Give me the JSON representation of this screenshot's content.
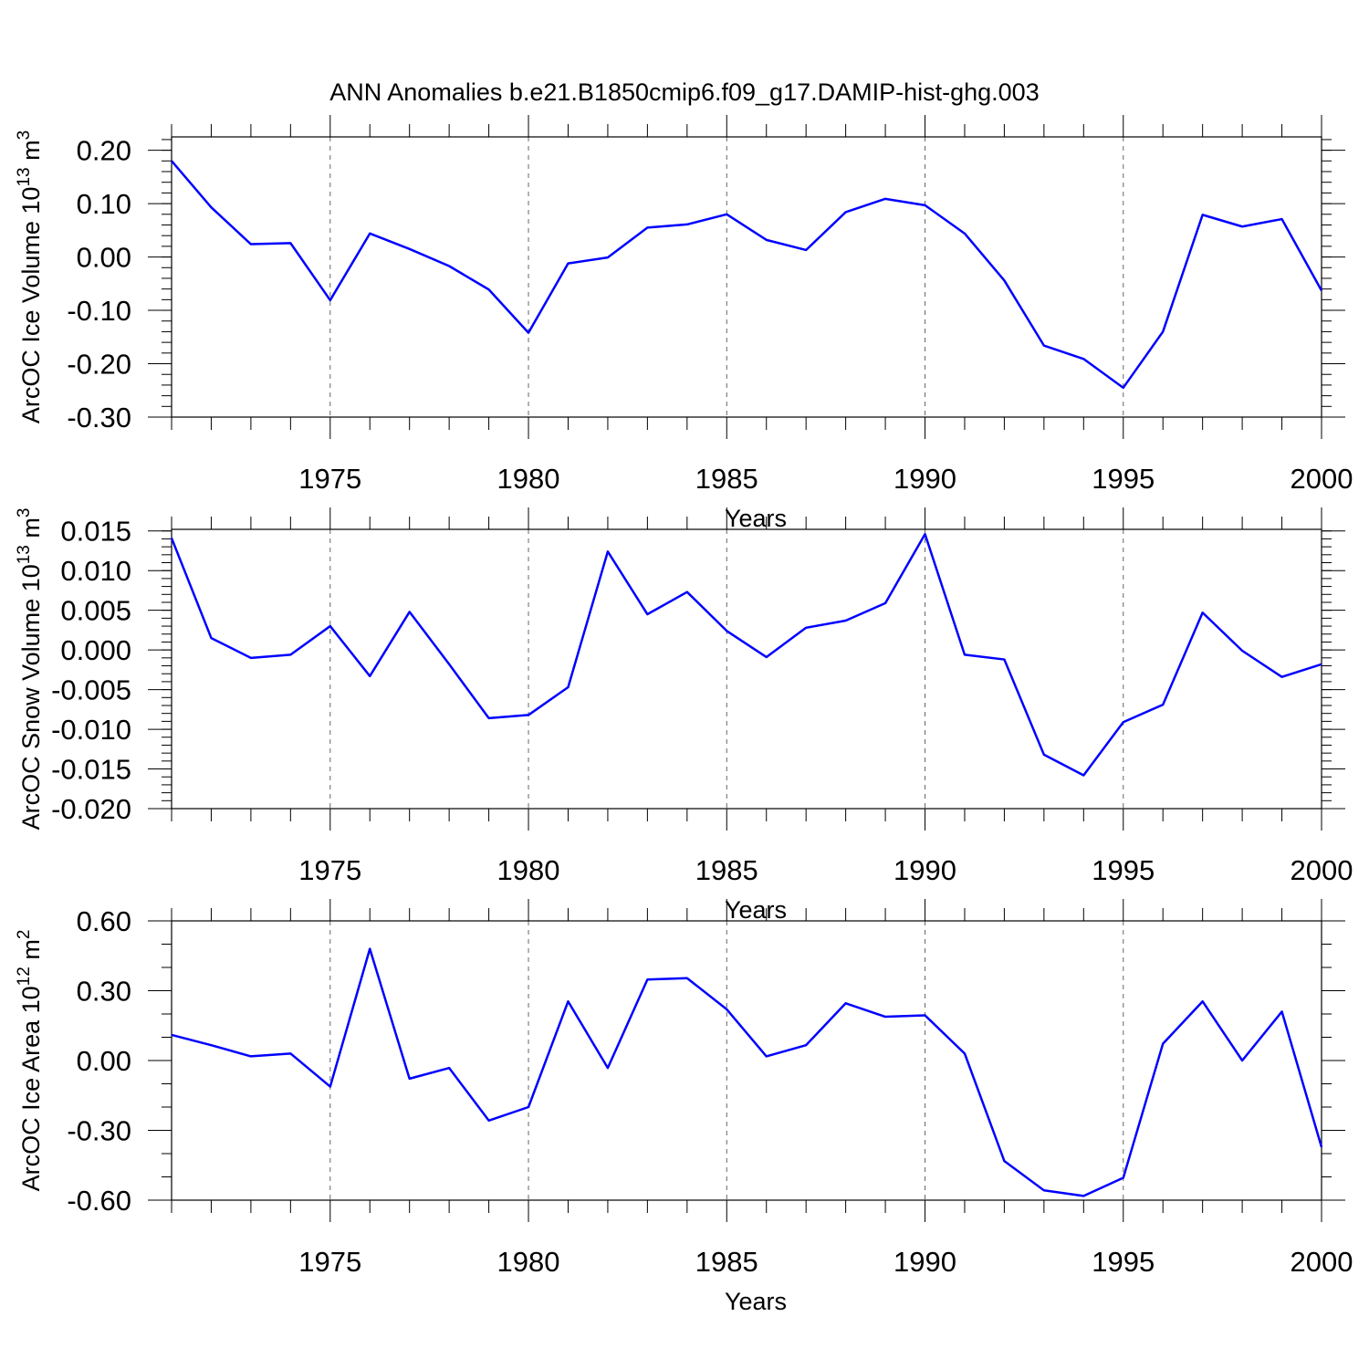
{
  "figure": {
    "title": "ANN Anomalies b.e21.B1850cmip6.f09_g17.DAMIP-hist-ghg.003"
  },
  "colors": {
    "line": "#0000ff",
    "axis": "#000000",
    "grid": "#666666"
  },
  "chart_data": [
    {
      "type": "line",
      "ylabel": "ArcOC Ice Volume 10",
      "ylabel_exp": "13",
      "ylabel_unit": " m",
      "ylabel_unit_exp": "3",
      "xlabel": "Years",
      "xlim": [
        1971,
        2000
      ],
      "ylim": [
        -0.3,
        0.225
      ],
      "yticks": [
        0.2,
        0.1,
        0.0,
        -0.1,
        -0.2,
        -0.3
      ],
      "ytick_labels": [
        "0.20",
        "0.10",
        "0.00",
        "-0.10",
        "-0.20",
        "-0.30"
      ],
      "yminor_step": 0.02,
      "xticks": [
        1975,
        1980,
        1985,
        1990,
        1995,
        2000
      ],
      "xtick_labels": [
        "1975",
        "1980",
        "1985",
        "1990",
        "1995",
        "2000"
      ],
      "grid_x": true,
      "x": [
        1971,
        1972,
        1973,
        1974,
        1975,
        1976,
        1977,
        1978,
        1979,
        1980,
        1981,
        1982,
        1983,
        1984,
        1985,
        1986,
        1987,
        1988,
        1989,
        1990,
        1991,
        1992,
        1993,
        1994,
        1995,
        1996,
        1997,
        1998,
        1999,
        2000
      ],
      "values": [
        0.18,
        0.093,
        0.024,
        0.026,
        -0.081,
        0.044,
        0.015,
        -0.017,
        -0.061,
        -0.142,
        -0.012,
        -0.001,
        0.055,
        0.061,
        0.08,
        0.032,
        0.013,
        0.084,
        0.109,
        0.097,
        0.044,
        -0.044,
        -0.166,
        -0.191,
        -0.245,
        -0.14,
        0.079,
        0.057,
        0.071,
        -0.063
      ]
    },
    {
      "type": "line",
      "ylabel": "ArcOC Snow Volume 10",
      "ylabel_exp": "13",
      "ylabel_unit": " m",
      "ylabel_unit_exp": "3",
      "xlabel": "Years",
      "xlim": [
        1971,
        2000
      ],
      "ylim": [
        -0.02,
        0.0152
      ],
      "yticks": [
        0.015,
        0.01,
        0.005,
        0.0,
        -0.005,
        -0.01,
        -0.015,
        -0.02
      ],
      "ytick_labels": [
        "0.015",
        "0.010",
        "0.005",
        "0.000",
        "-0.005",
        "-0.010",
        "-0.015",
        "-0.020"
      ],
      "yminor_step": 0.001,
      "xticks": [
        1975,
        1980,
        1985,
        1990,
        1995,
        2000
      ],
      "xtick_labels": [
        "1975",
        "1980",
        "1985",
        "1990",
        "1995",
        "2000"
      ],
      "grid_x": true,
      "x": [
        1971,
        1972,
        1973,
        1974,
        1975,
        1976,
        1977,
        1978,
        1979,
        1980,
        1981,
        1982,
        1983,
        1984,
        1985,
        1986,
        1987,
        1988,
        1989,
        1990,
        1991,
        1992,
        1993,
        1994,
        1995,
        1996,
        1997,
        1998,
        1999,
        2000
      ],
      "values": [
        0.0141,
        0.0015,
        -0.001,
        -0.0006,
        0.003,
        -0.0033,
        0.0048,
        -0.0018,
        -0.0086,
        -0.0082,
        -0.0047,
        0.0124,
        0.0045,
        0.0073,
        0.0024,
        -0.0009,
        0.0028,
        0.0037,
        0.0059,
        0.0146,
        -0.0006,
        -0.0012,
        -0.0132,
        -0.0158,
        -0.0091,
        -0.0069,
        0.0047,
        -0.0001,
        -0.0034,
        -0.0018
      ]
    },
    {
      "type": "line",
      "ylabel": "ArcOC Ice Area 10",
      "ylabel_exp": "12",
      "ylabel_unit": " m",
      "ylabel_unit_exp": "2",
      "xlabel": "Years",
      "xlim": [
        1971,
        2000
      ],
      "ylim": [
        -0.6,
        0.6
      ],
      "yticks": [
        0.6,
        0.3,
        0.0,
        -0.3,
        -0.6
      ],
      "ytick_labels": [
        "0.60",
        "0.30",
        "0.00",
        "-0.30",
        "-0.60"
      ],
      "yminor_step": 0.1,
      "xticks": [
        1975,
        1980,
        1985,
        1990,
        1995,
        2000
      ],
      "xtick_labels": [
        "1975",
        "1980",
        "1985",
        "1990",
        "1995",
        "2000"
      ],
      "grid_x": true,
      "x": [
        1971,
        1972,
        1973,
        1974,
        1975,
        1976,
        1977,
        1978,
        1979,
        1980,
        1981,
        1982,
        1983,
        1984,
        1985,
        1986,
        1987,
        1988,
        1989,
        1990,
        1991,
        1992,
        1993,
        1994,
        1995,
        1996,
        1997,
        1998,
        1999,
        2000
      ],
      "values": [
        0.11,
        0.066,
        0.018,
        0.03,
        -0.112,
        0.48,
        -0.078,
        -0.032,
        -0.258,
        -0.2,
        0.254,
        -0.032,
        0.348,
        0.354,
        0.22,
        0.018,
        0.066,
        0.246,
        0.188,
        0.194,
        0.03,
        -0.432,
        -0.558,
        -0.582,
        -0.504,
        0.072,
        0.254,
        0.0,
        0.21,
        -0.372
      ]
    }
  ]
}
